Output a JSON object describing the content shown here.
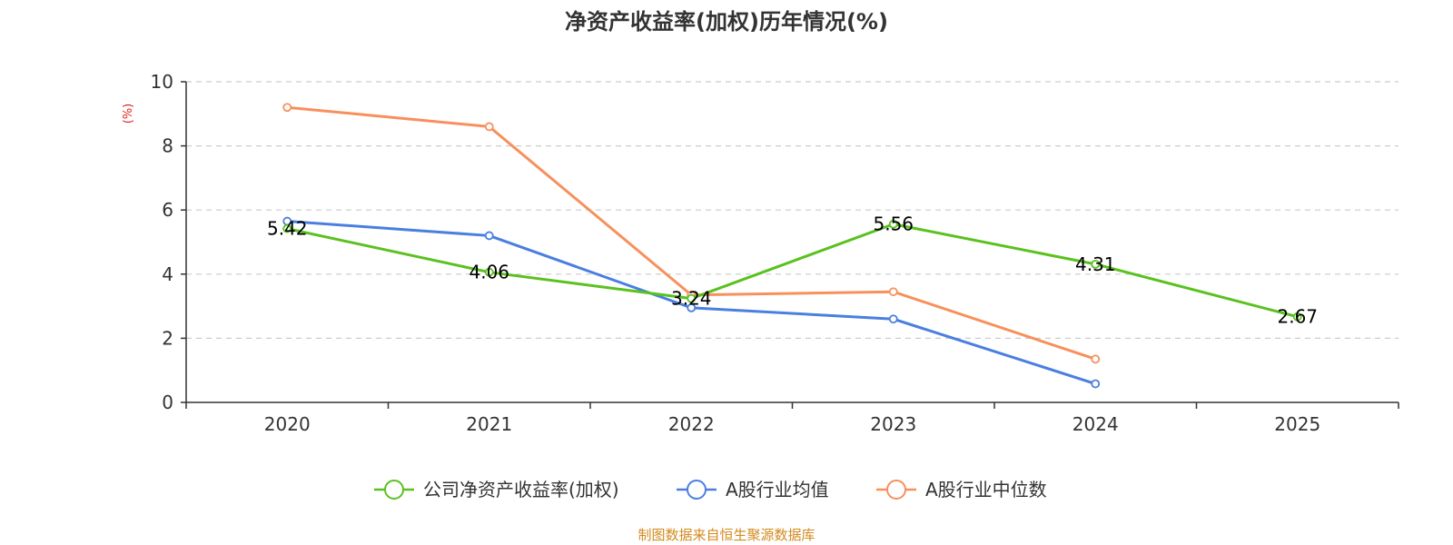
{
  "chart_data": {
    "type": "line",
    "title": "净资产收益率(加权)历年情况(%)",
    "unit_label": "(%)",
    "categories": [
      "2020",
      "2021",
      "2022",
      "2023",
      "2024",
      "2025"
    ],
    "ylim": [
      0,
      10
    ],
    "yticks": [
      0,
      2,
      4,
      6,
      8,
      10
    ],
    "grid": true,
    "legend_position": "bottom",
    "series": [
      {
        "name": "公司净资产收益率(加权)",
        "color": "#5ac11f",
        "values": [
          5.42,
          4.06,
          3.24,
          5.56,
          4.31,
          2.67
        ],
        "show_labels": true,
        "labels": [
          "5.42",
          "4.06",
          "3.24",
          "5.56",
          "4.31",
          "2.67"
        ]
      },
      {
        "name": "A股行业均值",
        "color": "#4a7fe0",
        "values": [
          5.65,
          5.2,
          2.95,
          2.6,
          0.58,
          null
        ],
        "show_labels": false
      },
      {
        "name": "A股行业中位数",
        "color": "#f7905c",
        "values": [
          9.2,
          8.6,
          3.35,
          3.45,
          1.35,
          null
        ],
        "show_labels": false
      }
    ],
    "source": "制图数据来自恒生聚源数据库",
    "source_color": "#d38a1d",
    "unit_color": "#e0211e"
  }
}
